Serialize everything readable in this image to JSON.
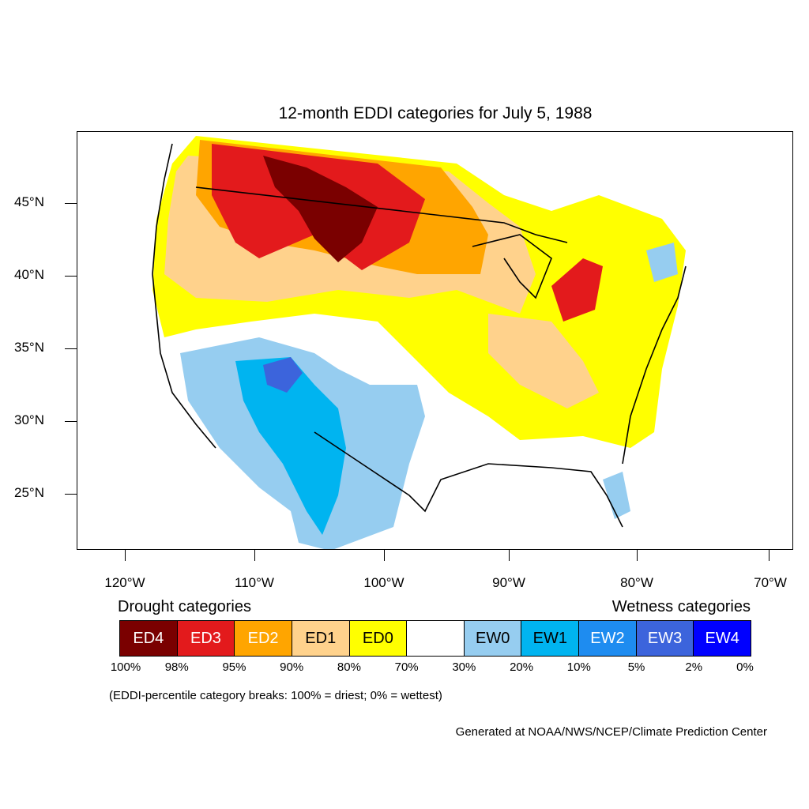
{
  "title": "12-month EDDI categories for July 5, 1988",
  "map": {
    "lat_labels": [
      "45°N",
      "40°N",
      "35°N",
      "30°N",
      "25°N"
    ],
    "lon_labels": [
      "120°W",
      "110°W",
      "100°W",
      "90°W",
      "80°W",
      "70°W"
    ]
  },
  "legend": {
    "drought_heading": "Drought categories",
    "wetness_heading": "Wetness categories",
    "categories": [
      {
        "label": "ED4",
        "color": "#7a0000",
        "text_color": "#ffffff"
      },
      {
        "label": "ED3",
        "color": "#e31a1c",
        "text_color": "#ffffff"
      },
      {
        "label": "ED2",
        "color": "#ffa500",
        "text_color": "#ffffff"
      },
      {
        "label": "ED1",
        "color": "#ffd28c",
        "text_color": "#000000"
      },
      {
        "label": "ED0",
        "color": "#ffff00",
        "text_color": "#000000"
      },
      {
        "label": "",
        "color": "#ffffff",
        "text_color": "#000000"
      },
      {
        "label": "EW0",
        "color": "#96cdf0",
        "text_color": "#000000"
      },
      {
        "label": "EW1",
        "color": "#00b4f0",
        "text_color": "#000000"
      },
      {
        "label": "EW2",
        "color": "#1e8cf0",
        "text_color": "#ffffff"
      },
      {
        "label": "EW3",
        "color": "#3c64dc",
        "text_color": "#ffffff"
      },
      {
        "label": "EW4",
        "color": "#0000ff",
        "text_color": "#ffffff"
      }
    ],
    "percentiles": [
      "100%",
      "98%",
      "95%",
      "90%",
      "80%",
      "70%",
      "30%",
      "20%",
      "10%",
      "5%",
      "2%",
      "0%"
    ]
  },
  "note": "(EDDI-percentile category breaks: 100% = driest; 0% = wettest)",
  "credit": "Generated at NOAA/NWS/NCEP/Climate Prediction Center"
}
